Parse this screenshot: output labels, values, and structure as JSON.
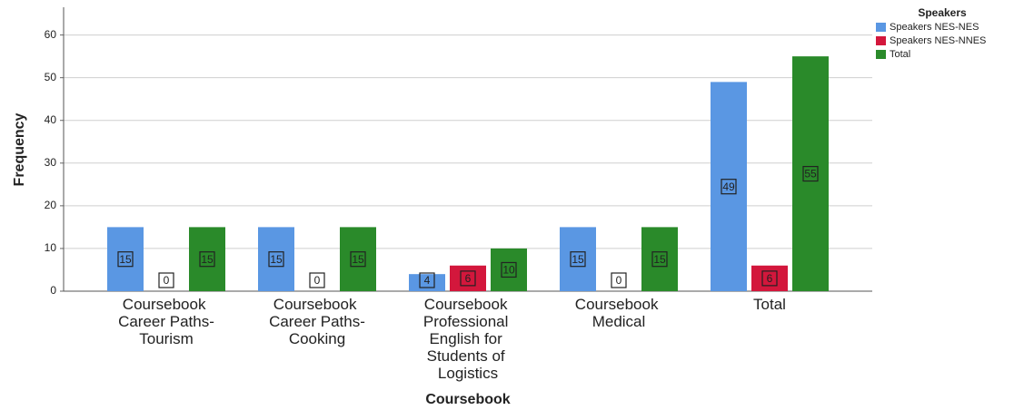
{
  "chart_data": {
    "type": "bar",
    "x_label": "Coursebook",
    "y_label": "Frequency",
    "legend_title": "Speakers",
    "legend_position": "upper right",
    "grid": true,
    "categories": [
      "Coursebook Career Paths-Tourism",
      "Coursebook Career Paths-Cooking",
      "Coursebook Professional English for Students of Logistics",
      "Coursebook Medical",
      "Total"
    ],
    "series": [
      {
        "name": "Speakers NES-NES",
        "color": "#5a97e3",
        "values": [
          15,
          15,
          4,
          15,
          49
        ]
      },
      {
        "name": "Speakers NES-NNES",
        "color": "#d3173c",
        "values": [
          0,
          0,
          6,
          0,
          6
        ]
      },
      {
        "name": "Total",
        "color": "#2a8a2a",
        "values": [
          15,
          15,
          10,
          15,
          55
        ]
      }
    ],
    "ylim": [
      0,
      66.5
    ],
    "yticks": [
      0,
      10,
      20,
      30,
      40,
      50,
      60
    ]
  }
}
